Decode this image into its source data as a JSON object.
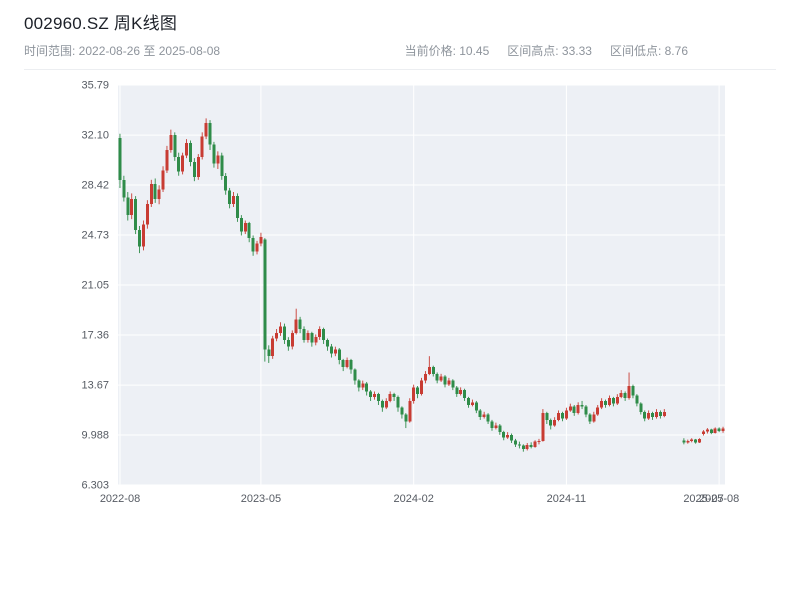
{
  "header": {
    "title": "002960.SZ 周K线图",
    "time_range": "时间范围: 2022-08-26 至 2025-08-08",
    "current_price": "当前价格: 10.45",
    "range_high": "区间高点: 33.33",
    "range_low": "区间低点: 8.76"
  },
  "chart_data": {
    "type": "candlestick",
    "title": "002960.SZ 周K线图",
    "symbol": "002960.SZ",
    "period": "weekly",
    "date_start": "2022-08-26",
    "date_end": "2025-08-08",
    "current_price": 10.45,
    "range_high": 33.33,
    "range_low": 8.76,
    "ylim": [
      6.303,
      35.79
    ],
    "grid": true,
    "plot_bg": "#edf0f5",
    "grid_color": "#ffffff",
    "tick_color": "#565b63",
    "up_color": "#c83c33",
    "down_color": "#2f8c49",
    "y_ticks": [
      {
        "value": 6.303,
        "label": "6.303"
      },
      {
        "value": 9.988,
        "label": "9.988"
      },
      {
        "value": 13.67,
        "label": "13.67"
      },
      {
        "value": 17.36,
        "label": "17.36"
      },
      {
        "value": 21.05,
        "label": "21.05"
      },
      {
        "value": 24.73,
        "label": "24.73"
      },
      {
        "value": 28.42,
        "label": "28.42"
      },
      {
        "value": 32.1,
        "label": "32.10"
      },
      {
        "value": 35.79,
        "label": "35.79"
      }
    ],
    "x_ticks": [
      {
        "index": 0,
        "label": "2022-08",
        "grid": true
      },
      {
        "index": 36,
        "label": "2023-05",
        "grid": true
      },
      {
        "index": 75,
        "label": "2024-02",
        "grid": true
      },
      {
        "index": 114,
        "label": "2024-11",
        "grid": true
      },
      {
        "index": 149,
        "label": "2025-07",
        "grid": false
      },
      {
        "index": 153,
        "label": "2025-08",
        "grid": true
      }
    ],
    "candles_format": [
      "open",
      "high",
      "low",
      "close"
    ],
    "candles": [
      [
        31.9,
        32.2,
        28.2,
        28.8
      ],
      [
        28.8,
        29.1,
        27.2,
        27.5
      ],
      [
        27.5,
        27.9,
        25.8,
        26.2
      ],
      [
        26.2,
        27.8,
        25.9,
        27.4
      ],
      [
        27.4,
        27.6,
        24.8,
        25.1
      ],
      [
        25.1,
        25.4,
        23.4,
        23.9
      ],
      [
        23.9,
        25.8,
        23.6,
        25.5
      ],
      [
        25.5,
        27.3,
        25.2,
        27.0
      ],
      [
        27.0,
        28.8,
        26.8,
        28.5
      ],
      [
        28.5,
        28.9,
        27.1,
        27.4
      ],
      [
        27.4,
        28.4,
        27.0,
        28.1
      ],
      [
        28.1,
        29.8,
        27.9,
        29.5
      ],
      [
        29.5,
        31.3,
        29.3,
        31.0
      ],
      [
        31.0,
        32.5,
        30.8,
        32.1
      ],
      [
        32.1,
        32.3,
        30.2,
        30.5
      ],
      [
        30.5,
        30.8,
        29.1,
        29.4
      ],
      [
        29.4,
        30.8,
        29.2,
        30.6
      ],
      [
        30.6,
        31.8,
        30.4,
        31.5
      ],
      [
        31.5,
        31.7,
        29.8,
        30.1
      ],
      [
        30.1,
        30.4,
        28.7,
        29.0
      ],
      [
        29.0,
        30.7,
        28.8,
        30.5
      ],
      [
        30.5,
        32.3,
        30.3,
        32.0
      ],
      [
        32.0,
        33.33,
        31.8,
        33.0
      ],
      [
        33.0,
        33.2,
        31.0,
        31.4
      ],
      [
        31.4,
        31.6,
        29.7,
        30.0
      ],
      [
        30.0,
        30.9,
        29.6,
        30.6
      ],
      [
        30.6,
        30.8,
        28.8,
        29.1
      ],
      [
        29.1,
        29.3,
        27.7,
        28.0
      ],
      [
        28.0,
        28.2,
        26.7,
        27.0
      ],
      [
        27.0,
        27.9,
        26.8,
        27.6
      ],
      [
        27.6,
        27.8,
        25.7,
        26.0
      ],
      [
        26.0,
        26.2,
        24.7,
        25.0
      ],
      [
        25.0,
        25.8,
        24.8,
        25.6
      ],
      [
        25.6,
        25.7,
        24.2,
        24.5
      ],
      [
        24.5,
        24.7,
        23.2,
        23.5
      ],
      [
        23.5,
        24.3,
        23.3,
        24.1
      ],
      [
        24.1,
        24.9,
        23.9,
        24.6
      ],
      [
        24.4,
        24.5,
        15.4,
        16.3
      ],
      [
        16.3,
        16.6,
        15.3,
        15.8
      ],
      [
        15.8,
        17.3,
        15.6,
        17.1
      ],
      [
        17.1,
        17.8,
        16.9,
        17.5
      ],
      [
        17.5,
        18.3,
        17.3,
        18.0
      ],
      [
        18.0,
        18.2,
        16.7,
        17.0
      ],
      [
        17.0,
        17.2,
        16.2,
        16.5
      ],
      [
        16.5,
        17.7,
        16.3,
        17.5
      ],
      [
        17.5,
        19.3,
        17.4,
        18.5
      ],
      [
        18.5,
        18.7,
        17.5,
        17.8
      ],
      [
        17.8,
        18.0,
        16.8,
        17.0
      ],
      [
        17.0,
        17.7,
        16.8,
        17.5
      ],
      [
        17.5,
        17.6,
        16.5,
        16.8
      ],
      [
        16.8,
        17.4,
        16.6,
        17.2
      ],
      [
        17.2,
        18.0,
        17.0,
        17.8
      ],
      [
        17.8,
        17.9,
        16.7,
        17.0
      ],
      [
        17.0,
        17.1,
        16.2,
        16.5
      ],
      [
        16.5,
        16.7,
        15.7,
        16.0
      ],
      [
        16.0,
        16.5,
        15.8,
        16.3
      ],
      [
        16.3,
        16.4,
        15.2,
        15.5
      ],
      [
        15.5,
        15.6,
        14.7,
        15.0
      ],
      [
        15.0,
        15.7,
        14.9,
        15.5
      ],
      [
        15.5,
        15.6,
        14.5,
        14.8
      ],
      [
        14.8,
        14.9,
        13.7,
        14.0
      ],
      [
        14.0,
        14.1,
        13.2,
        13.5
      ],
      [
        13.5,
        14.0,
        13.3,
        13.8
      ],
      [
        13.8,
        13.9,
        12.9,
        13.2
      ],
      [
        13.2,
        13.3,
        12.5,
        12.8
      ],
      [
        12.8,
        13.2,
        12.6,
        13.0
      ],
      [
        13.0,
        13.1,
        12.2,
        12.5
      ],
      [
        12.5,
        12.6,
        11.7,
        12.0
      ],
      [
        12.0,
        12.7,
        11.9,
        12.5
      ],
      [
        12.5,
        13.2,
        12.4,
        13.0
      ],
      [
        13.0,
        13.1,
        12.5,
        12.8
      ],
      [
        12.8,
        12.9,
        11.7,
        12.0
      ],
      [
        12.0,
        12.1,
        11.2,
        11.5
      ],
      [
        11.5,
        11.6,
        10.5,
        11.0
      ],
      [
        11.0,
        12.7,
        10.9,
        12.5
      ],
      [
        12.5,
        13.7,
        12.3,
        13.5
      ],
      [
        13.5,
        13.6,
        12.7,
        13.0
      ],
      [
        13.0,
        14.2,
        12.9,
        14.0
      ],
      [
        14.0,
        14.7,
        13.8,
        14.5
      ],
      [
        14.5,
        15.8,
        14.4,
        15.0
      ],
      [
        15.0,
        15.1,
        14.3,
        14.5
      ],
      [
        14.5,
        14.6,
        13.8,
        14.0
      ],
      [
        14.0,
        14.5,
        13.9,
        14.3
      ],
      [
        14.3,
        14.4,
        13.5,
        13.7
      ],
      [
        13.7,
        14.2,
        13.6,
        14.0
      ],
      [
        14.0,
        14.1,
        13.3,
        13.5
      ],
      [
        13.5,
        13.6,
        12.8,
        13.0
      ],
      [
        13.0,
        13.5,
        12.9,
        13.3
      ],
      [
        13.3,
        13.4,
        12.5,
        12.7
      ],
      [
        12.7,
        12.8,
        12.0,
        12.2
      ],
      [
        12.2,
        12.6,
        12.1,
        12.4
      ],
      [
        12.4,
        12.5,
        11.6,
        11.8
      ],
      [
        11.8,
        11.9,
        11.1,
        11.3
      ],
      [
        11.3,
        11.7,
        11.2,
        11.5
      ],
      [
        11.5,
        11.6,
        10.8,
        11.0
      ],
      [
        11.0,
        11.1,
        10.3,
        10.5
      ],
      [
        10.5,
        10.9,
        10.4,
        10.7
      ],
      [
        10.7,
        10.8,
        10.0,
        10.2
      ],
      [
        10.2,
        10.3,
        9.6,
        9.8
      ],
      [
        9.8,
        10.2,
        9.7,
        10.0
      ],
      [
        10.0,
        10.1,
        9.4,
        9.6
      ],
      [
        9.6,
        9.7,
        9.1,
        9.3
      ],
      [
        9.3,
        9.5,
        9.0,
        9.2
      ],
      [
        9.2,
        9.3,
        8.76,
        8.95
      ],
      [
        8.95,
        9.4,
        8.85,
        9.25
      ],
      [
        9.25,
        9.45,
        9.0,
        9.1
      ],
      [
        9.1,
        9.6,
        9.05,
        9.5
      ],
      [
        9.5,
        9.7,
        9.3,
        9.55
      ],
      [
        9.55,
        11.9,
        9.5,
        11.6
      ],
      [
        11.6,
        11.7,
        10.8,
        11.1
      ],
      [
        11.1,
        11.2,
        10.4,
        10.7
      ],
      [
        10.7,
        11.3,
        10.6,
        11.1
      ],
      [
        11.1,
        11.8,
        11.0,
        11.6
      ],
      [
        11.6,
        11.7,
        11.0,
        11.2
      ],
      [
        11.2,
        12.0,
        11.1,
        11.8
      ],
      [
        11.8,
        12.3,
        11.7,
        12.1
      ],
      [
        12.1,
        12.2,
        11.4,
        11.6
      ],
      [
        11.6,
        12.4,
        11.5,
        12.2
      ],
      [
        12.2,
        12.5,
        11.9,
        12.1
      ],
      [
        12.1,
        12.2,
        11.3,
        11.5
      ],
      [
        11.5,
        11.6,
        10.8,
        11.0
      ],
      [
        11.0,
        11.7,
        10.9,
        11.5
      ],
      [
        11.5,
        12.2,
        11.4,
        12.0
      ],
      [
        12.0,
        12.7,
        11.9,
        12.5
      ],
      [
        12.5,
        12.6,
        12.0,
        12.2
      ],
      [
        12.2,
        12.9,
        12.1,
        12.7
      ],
      [
        12.7,
        12.8,
        12.1,
        12.3
      ],
      [
        12.3,
        13.0,
        12.2,
        12.8
      ],
      [
        12.8,
        13.3,
        12.7,
        13.1
      ],
      [
        13.1,
        13.2,
        12.5,
        12.7
      ],
      [
        12.7,
        14.6,
        12.6,
        13.6
      ],
      [
        13.6,
        13.7,
        12.7,
        12.9
      ],
      [
        12.9,
        13.0,
        12.1,
        12.3
      ],
      [
        12.3,
        12.4,
        11.5,
        11.7
      ],
      [
        11.7,
        11.8,
        11.0,
        11.2
      ],
      [
        11.2,
        11.8,
        11.1,
        11.6
      ],
      [
        11.6,
        11.7,
        11.1,
        11.3
      ],
      [
        11.3,
        11.9,
        11.2,
        11.7
      ],
      [
        11.7,
        11.8,
        11.2,
        11.4
      ],
      [
        11.4,
        11.9,
        11.3,
        11.7
      ],
      null,
      null,
      null,
      null,
      [
        9.6,
        9.75,
        9.3,
        9.45
      ],
      [
        9.45,
        9.65,
        9.35,
        9.55
      ],
      [
        9.55,
        9.75,
        9.45,
        9.65
      ],
      [
        9.65,
        9.7,
        9.35,
        9.45
      ],
      [
        9.45,
        9.75,
        9.4,
        9.7
      ],
      [
        10.05,
        10.35,
        9.95,
        10.25
      ],
      [
        10.25,
        10.5,
        10.1,
        10.4
      ],
      [
        10.4,
        10.45,
        10.05,
        10.15
      ],
      [
        10.15,
        10.55,
        10.1,
        10.45
      ],
      [
        10.45,
        10.55,
        10.2,
        10.3
      ],
      [
        10.3,
        10.6,
        10.15,
        10.45
      ]
    ]
  }
}
